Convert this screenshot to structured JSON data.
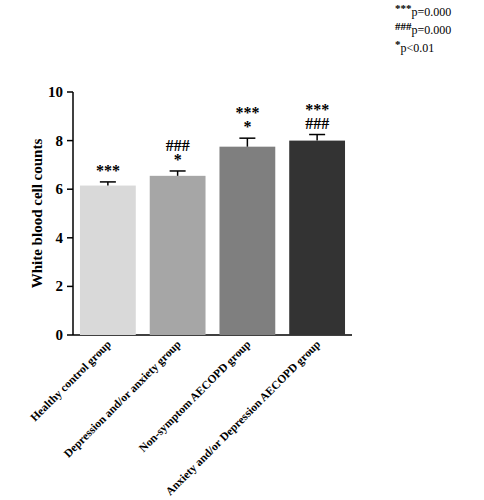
{
  "chart_data": {
    "type": "bar",
    "categories": [
      "Healthy control group",
      "Depression and/or anxiety group",
      "Non-symptom AECOPD group",
      "Anxiety and/or Depression AECOPD group"
    ],
    "values": [
      6.15,
      6.55,
      7.75,
      8.0
    ],
    "errors": [
      0.15,
      0.2,
      0.35,
      0.25
    ],
    "colors": [
      "#d9d9d9",
      "#a6a6a6",
      "#7f7f7f",
      "#333333"
    ],
    "y_label": "White blood cell counts",
    "ylim": [
      0,
      10
    ],
    "yticks": [
      0,
      2,
      4,
      6,
      8,
      10
    ],
    "bar_annotations": [
      [
        "***"
      ],
      [
        "###",
        "*"
      ],
      [
        "***",
        "*"
      ],
      [
        "***",
        "###"
      ]
    ],
    "annotations": [
      {
        "symbol": "***",
        "text": "p=0.000"
      },
      {
        "symbol": "###",
        "text": "p=0.000"
      },
      {
        "symbol": "*",
        "text": "p<0.01"
      }
    ]
  }
}
